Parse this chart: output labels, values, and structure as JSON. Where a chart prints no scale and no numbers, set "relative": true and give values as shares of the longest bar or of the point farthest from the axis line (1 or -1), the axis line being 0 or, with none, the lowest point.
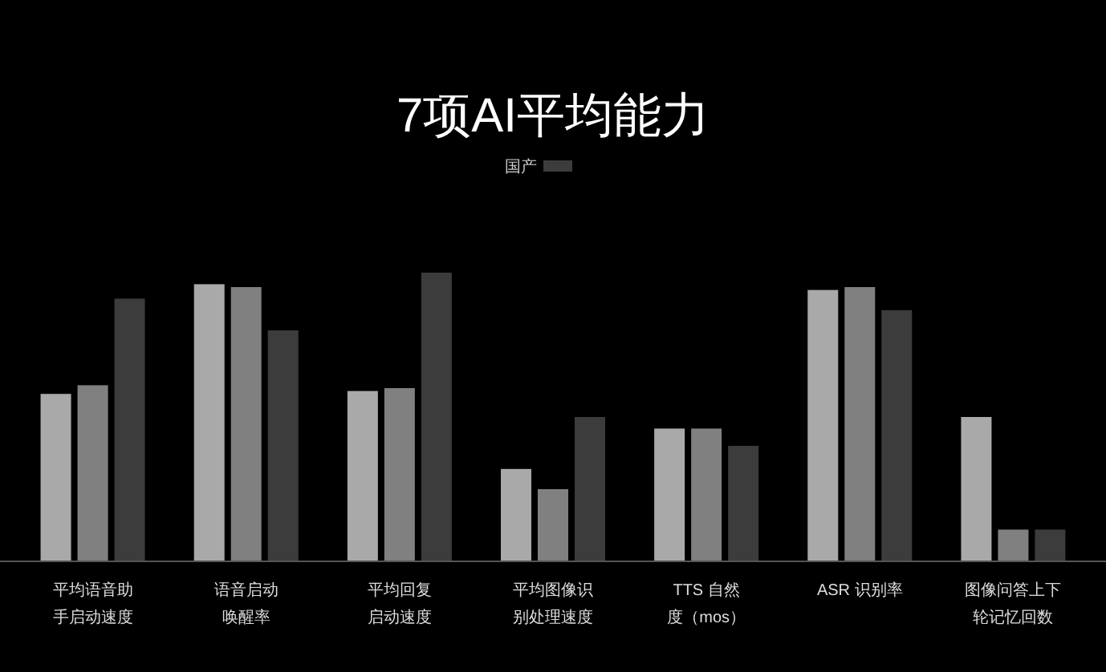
{
  "chart_data": {
    "type": "bar",
    "title": "7项AI平均能力",
    "relative": true,
    "legend": "top",
    "categories": [
      "平均语音助手启动速度",
      "语音启动唤醒率",
      "平均回复启动速度",
      "平均图像识别处理速度",
      "TTS 自然度（mos）",
      "ASR 识别率",
      "图像问答上下轮记忆回数"
    ],
    "series": [
      {
        "color": "#a9a9a9",
        "values": [
          0.58,
          0.96,
          0.59,
          0.32,
          0.46,
          0.94,
          0.5
        ]
      },
      {
        "color": "#808080",
        "values": [
          0.61,
          0.95,
          0.6,
          0.25,
          0.46,
          0.95,
          0.11
        ]
      },
      {
        "name": "国产",
        "color": "#3c3c3c",
        "values": [
          0.91,
          0.8,
          1,
          0.5,
          0.4,
          0.87,
          0.11
        ]
      }
    ]
  }
}
